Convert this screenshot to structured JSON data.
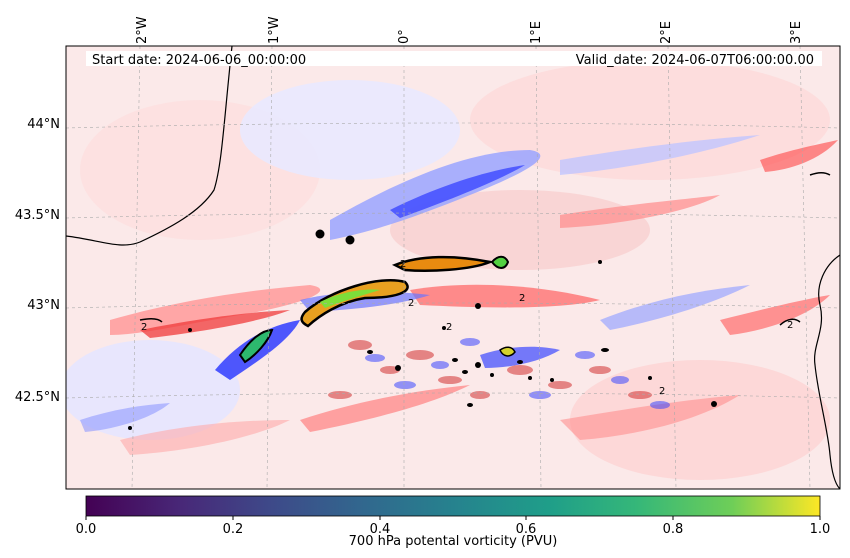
{
  "map": {
    "header": {
      "start_date": "Start date: 2024-06-06_00:00:00",
      "valid_date": "Valid_date: 2024-06-07T06:00:00.00"
    },
    "lon_labels": [
      "2°W",
      "1°W",
      "0°",
      "1°E",
      "2°E",
      "3°E"
    ],
    "lat_labels": [
      "44°N",
      "43.5°N",
      "43°N",
      "42.5°N"
    ],
    "contour_label": "2",
    "colorbar": {
      "title": "700 hPa potental vorticity (PVU)",
      "ticks": [
        "0.0",
        "0.2",
        "0.4",
        "0.6",
        "0.8",
        "1.0"
      ],
      "colormap": "viridis",
      "range": [
        0.0,
        1.0
      ]
    },
    "colors": {
      "positive_anomaly": "#ff5a5a",
      "negative_anomaly": "#4455ff",
      "coastline": "#000000"
    },
    "markers": [
      "city-marker",
      "city-marker"
    ]
  }
}
